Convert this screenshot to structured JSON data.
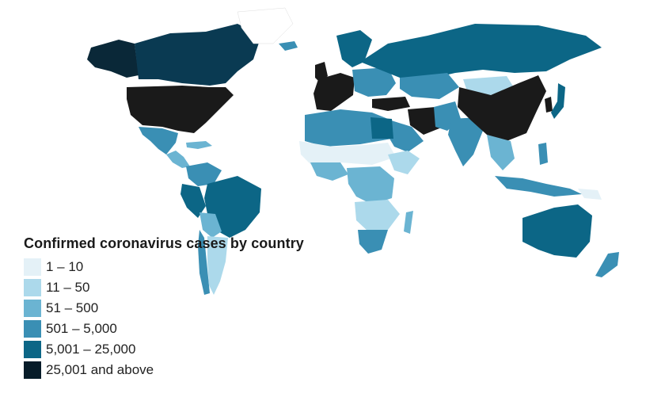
{
  "legend": {
    "title": "Confirmed coronavirus cases by country",
    "items": [
      {
        "label": "1 – 10",
        "color": "#e4f1f7"
      },
      {
        "label": "11 – 50",
        "color": "#acd9eb"
      },
      {
        "label": "51 – 500",
        "color": "#6bb4d2"
      },
      {
        "label": "501 – 5,000",
        "color": "#3a8fb4"
      },
      {
        "label": "5,001 – 25,000",
        "color": "#0c6686"
      },
      {
        "label": "25,001 and above",
        "color": "#071c29"
      }
    ]
  }
}
